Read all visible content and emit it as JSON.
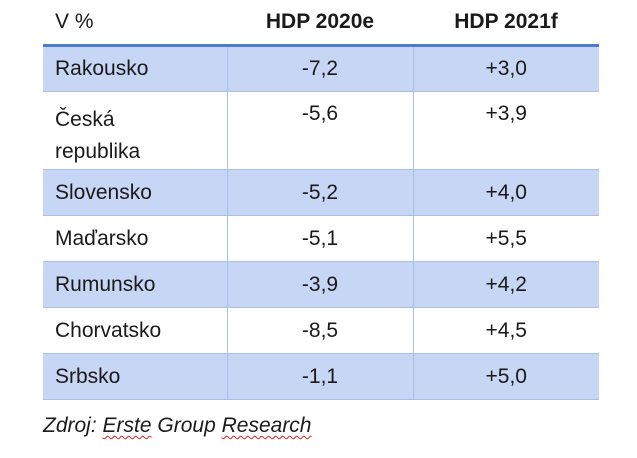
{
  "table": {
    "headers": [
      "V %",
      "HDP 2020e",
      "HDP 2021f"
    ],
    "rows": [
      {
        "country": "Rakousko",
        "hdp2020e": "-7,2",
        "hdp2021f": "+3,0"
      },
      {
        "country_line1": "Česká",
        "country_line2": "republika",
        "hdp2020e": "-5,6",
        "hdp2021f": "+3,9"
      },
      {
        "country": "Slovensko",
        "hdp2020e": "-5,2",
        "hdp2021f": "+4,0"
      },
      {
        "country": "Maďarsko",
        "hdp2020e": "-5,1",
        "hdp2021f": "+5,5"
      },
      {
        "country": "Rumunsko",
        "hdp2020e": "-3,9",
        "hdp2021f": "+4,2"
      },
      {
        "country": "Chorvatsko",
        "hdp2020e": "-8,5",
        "hdp2021f": "+4,5"
      },
      {
        "country": "Srbsko",
        "hdp2020e": "-1,1",
        "hdp2021f": "+5,0"
      }
    ]
  },
  "source": {
    "prefix": "Zdroj:",
    "word1": "Erste",
    "word2": "Group",
    "word3": "Research"
  },
  "colors": {
    "header_rule": "#4a7bd0",
    "row_shade": "#c6d6f4",
    "grid_line": "#a9bfe6"
  }
}
